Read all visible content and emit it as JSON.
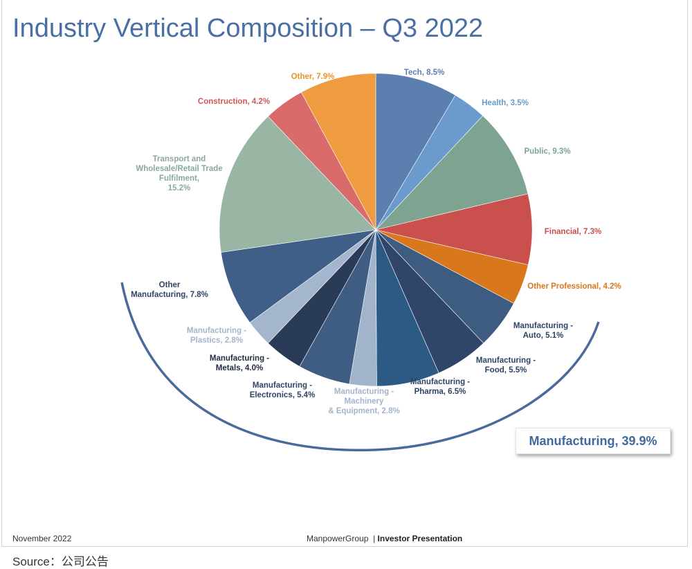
{
  "chart_data": {
    "type": "pie",
    "title": "Industry Vertical Composition – Q3 2022",
    "slices": [
      {
        "label": "Tech, 8.5%",
        "name": "Tech",
        "value": 8.5,
        "color": "#5b7fae",
        "text_color": "#5b7fae"
      },
      {
        "label": "Health, 3.5%",
        "name": "Health",
        "value": 3.5,
        "color": "#6a9bcc",
        "text_color": "#6a9bcc"
      },
      {
        "label": "Public, 9.3%",
        "name": "Public",
        "value": 9.3,
        "color": "#7ea390",
        "text_color": "#7ea390"
      },
      {
        "label": "Financial, 7.3%",
        "name": "Financial",
        "value": 7.3,
        "color": "#c9504c",
        "text_color": "#c9504c"
      },
      {
        "label": "Other Professional, 4.2%",
        "name": "Other Professional",
        "value": 4.2,
        "color": "#d8771c",
        "text_color": "#d8771c"
      },
      {
        "label": "Manufacturing - Auto, 5.1%",
        "name": "Manufacturing - Auto",
        "value": 5.1,
        "color": "#3e5b82",
        "text_color": "#2e4466"
      },
      {
        "label": "Manufacturing - Food, 5.5%",
        "name": "Manufacturing - Food",
        "value": 5.5,
        "color": "#2f4669",
        "text_color": "#2e4466"
      },
      {
        "label": "Manufacturing - Pharma, 6.5%",
        "name": "Manufacturing - Pharma",
        "value": 6.5,
        "color": "#2d5985",
        "text_color": "#2e4466"
      },
      {
        "label": "Manufacturing - Machinery & Equipment, 2.8%",
        "name": "Manufacturing - Machinery & Equipment",
        "value": 2.8,
        "color": "#a2b3cc",
        "text_color": "#a2b3cc"
      },
      {
        "label": "Manufacturing - Electronics, 5.4%",
        "name": "Manufacturing - Electronics",
        "value": 5.4,
        "color": "#3f5c82",
        "text_color": "#2e4466"
      },
      {
        "label": "Manufacturing - Metals, 4.0%",
        "name": "Manufacturing - Metals",
        "value": 4.0,
        "color": "#2a3b58",
        "text_color": "#222e44"
      },
      {
        "label": "Manufacturing - Plastics, 2.8%",
        "name": "Manufacturing - Plastics",
        "value": 2.8,
        "color": "#a4b5ce",
        "text_color": "#a4b5ce"
      },
      {
        "label": "Other Manufacturing, 7.8%",
        "name": "Other Manufacturing",
        "value": 7.8,
        "color": "#3f5f88",
        "text_color": "#2e4466"
      },
      {
        "label": "Transport and Wholesale/Retail Trade Fulfilment, 15.2%",
        "name": "Transport and Wholesale/Retail Trade Fulfilment",
        "value": 15.2,
        "color": "#99b6a5",
        "text_color": "#8aaa98"
      },
      {
        "label": "Construction, 4.2%",
        "name": "Construction",
        "value": 4.2,
        "color": "#d96b6b",
        "text_color": "#d05858"
      },
      {
        "label": "Other, 7.9%",
        "name": "Other",
        "value": 7.9,
        "color": "#ee9c3f",
        "text_color": "#e8932f"
      }
    ],
    "annotation": "Manufacturing, 39.9%",
    "arc_color": "#4a6a9c"
  },
  "footer": {
    "date": "November 2022",
    "company": "ManpowerGroup",
    "separator": "|",
    "deck": "Investor Presentation"
  },
  "source": "Source：公司公告"
}
